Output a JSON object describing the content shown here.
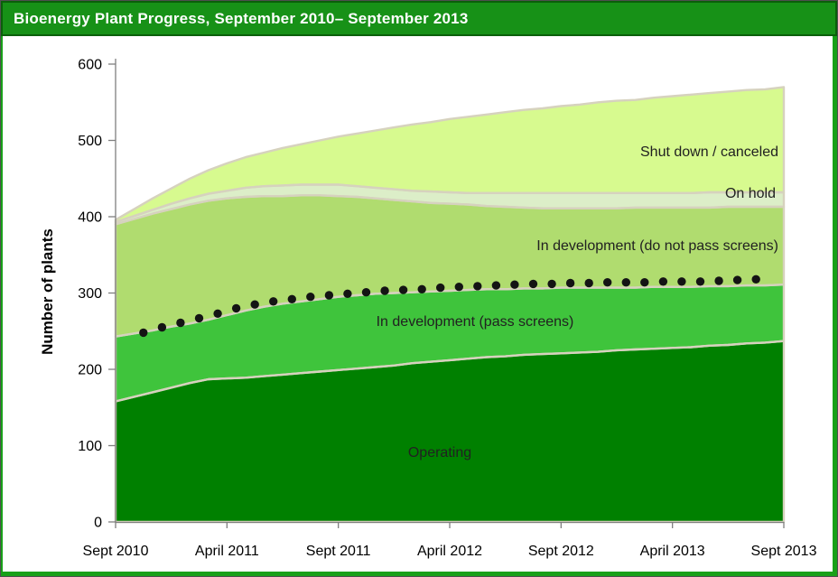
{
  "header": {
    "title": "Bioenergy Plant Progress, September 2010– September 2013"
  },
  "chart_data": {
    "type": "area",
    "stacked": true,
    "title": "Bioenergy Plant Progress, September 2010– September 2013",
    "ylabel": "Number of plants",
    "ylim": [
      0,
      600
    ],
    "ytick_step": 100,
    "grid": false,
    "legend_position": "labels drawn inside areas",
    "x_months": 36,
    "xtick_labels": [
      "Sept 2010",
      "April 2011",
      "Sept 2011",
      "April 2012",
      "Sept 2012",
      "April 2013",
      "Sept 2013"
    ],
    "axis_color": "#7F7F7F",
    "border_color": "#D6D2BE",
    "series": [
      {
        "name": "Operating",
        "color": "#008000",
        "values": [
          158,
          164,
          170,
          176,
          182,
          187,
          188,
          189,
          191,
          193,
          195,
          197,
          199,
          201,
          203,
          205,
          208,
          210,
          212,
          214,
          216,
          217,
          219,
          220,
          221,
          222,
          223,
          225,
          226,
          227,
          228,
          229,
          231,
          232,
          234,
          235,
          237
        ]
      },
      {
        "name": "In development (pass screens)",
        "color": "#3FC43C",
        "values": [
          85,
          83,
          81,
          80,
          78,
          78,
          83,
          88,
          91,
          93,
          94,
          95,
          96,
          96,
          96,
          95,
          93,
          92,
          91,
          90,
          89,
          88,
          87,
          86,
          86,
          85,
          84,
          82,
          81,
          81,
          80,
          79,
          78,
          77,
          76,
          75,
          74
        ]
      },
      {
        "name": "In development (do not pass screens)",
        "color": "#B0DC6F",
        "values": [
          147,
          150,
          153,
          154,
          156,
          156,
          153,
          149,
          145,
          141,
          139,
          136,
          132,
          129,
          125,
          122,
          119,
          116,
          114,
          112,
          109,
          108,
          106,
          105,
          104,
          104,
          104,
          104,
          105,
          104,
          104,
          104,
          103,
          104,
          103,
          103,
          102
        ]
      },
      {
        "name": "On hold",
        "color": "#DCEEC8",
        "values": [
          3,
          4,
          5,
          7,
          8,
          9,
          10,
          12,
          13,
          14,
          14,
          14,
          15,
          14,
          14,
          14,
          14,
          15,
          15,
          15,
          17,
          18,
          19,
          20,
          20,
          20,
          20,
          20,
          19,
          19,
          19,
          19,
          20,
          19,
          19,
          19,
          19
        ]
      },
      {
        "name": "Shut down / canceled",
        "color": "#D7FA8F",
        "values": [
          3,
          9,
          15,
          20,
          26,
          31,
          36,
          40,
          44,
          49,
          53,
          58,
          63,
          69,
          75,
          81,
          87,
          91,
          96,
          100,
          103,
          106,
          109,
          111,
          114,
          116,
          119,
          121,
          122,
          125,
          127,
          129,
          130,
          132,
          134,
          135,
          138
        ]
      }
    ],
    "dot_series": {
      "name": "monthly marker series (unlabeled)",
      "color": "#141414",
      "start_month": 1.5,
      "month_step": 1,
      "values": [
        248,
        255,
        261,
        267,
        273,
        280,
        285,
        289,
        292,
        295,
        297,
        299,
        301,
        303,
        304,
        305,
        307,
        308,
        309,
        310,
        311,
        312,
        312,
        313,
        313,
        314,
        314,
        314,
        315,
        315,
        315,
        316,
        317,
        318
      ]
    }
  }
}
